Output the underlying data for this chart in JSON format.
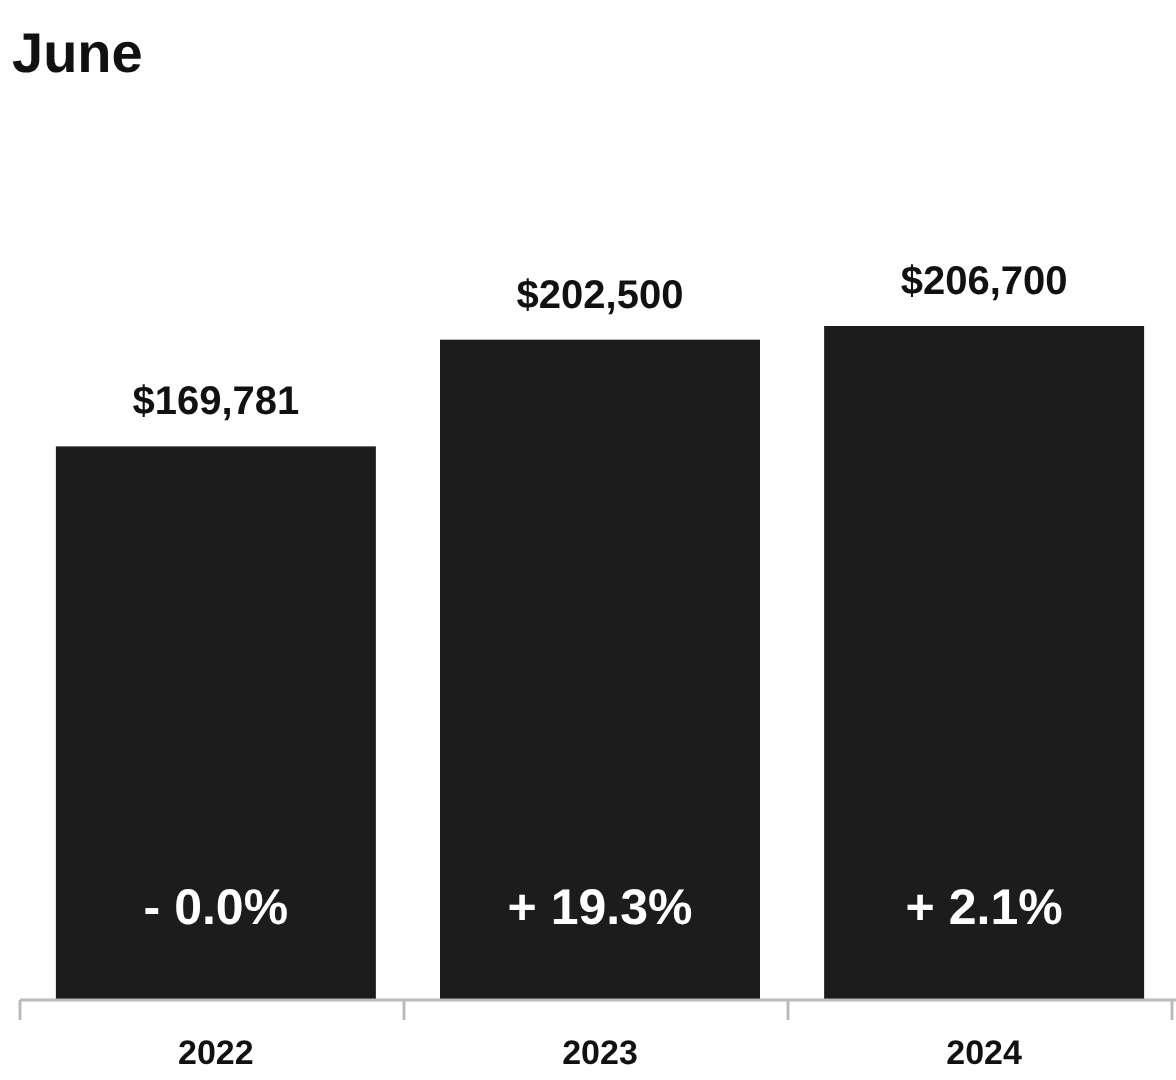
{
  "chart_data": {
    "type": "bar",
    "title": "June",
    "categories": [
      "2022",
      "2023",
      "2024"
    ],
    "values": [
      169781,
      202500,
      206700
    ],
    "color": "#1c1c1c",
    "value_labels": [
      "$169,781",
      "$202,500",
      "$206,700"
    ],
    "annotations": [
      "- 0.0%",
      "+ 19.3%",
      "+ 2.1%"
    ]
  }
}
